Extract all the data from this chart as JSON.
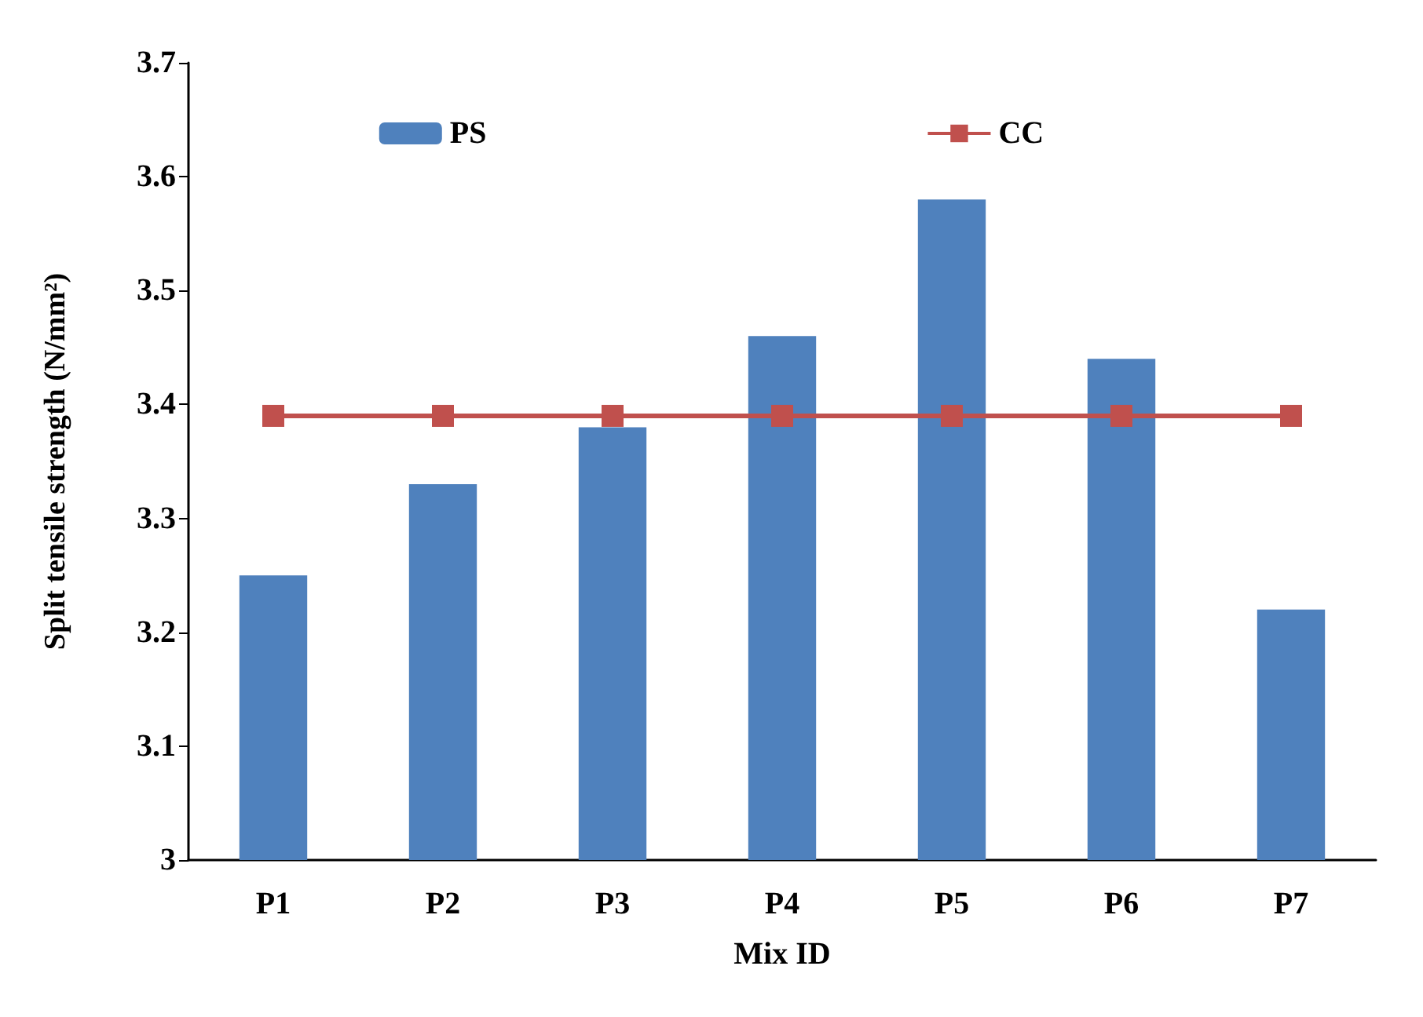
{
  "chart_data": {
    "type": "bar",
    "xlabel": "Mix ID",
    "ylabel": "Split tensile strength (N/mm²)",
    "categories": [
      "P1",
      "P2",
      "P3",
      "P4",
      "P5",
      "P6",
      "P7"
    ],
    "series": [
      {
        "name": "PS",
        "color": "#4f81bd",
        "values": [
          3.25,
          3.33,
          3.38,
          3.46,
          3.58,
          3.44,
          3.22
        ]
      },
      {
        "name": "CC",
        "type": "line",
        "color": "#c0504d",
        "marker": "square",
        "values": [
          3.39,
          3.39,
          3.39,
          3.39,
          3.39,
          3.39,
          3.39
        ]
      }
    ],
    "ylim": [
      3,
      3.7
    ],
    "yticks": [
      3,
      3.1,
      3.2,
      3.3,
      3.4,
      3.5,
      3.6,
      3.7
    ],
    "grid": false,
    "legend": "top"
  }
}
